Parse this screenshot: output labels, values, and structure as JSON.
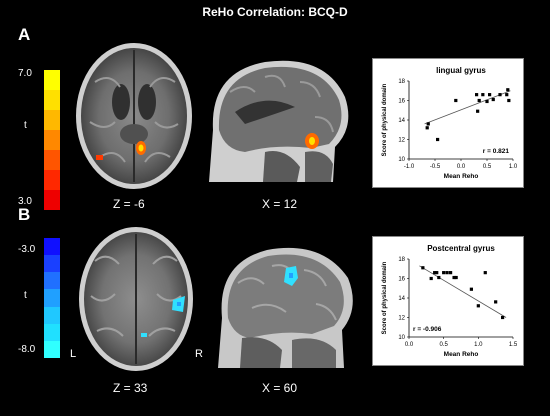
{
  "title": "ReHo Correlation: BCQ-D",
  "panels": {
    "a": {
      "letter": "A",
      "scale": {
        "max": "7.0",
        "min": "3.0",
        "stat": "t",
        "colors": [
          "#ffff00",
          "#ffe000",
          "#ffb800",
          "#ff8800",
          "#ff5500",
          "#ff2800",
          "#ee0000"
        ]
      },
      "axial_coord": "Z = -6",
      "sagittal_coord": "X = 12",
      "plot": {
        "title": "lingual gyrus",
        "r_label": "r = 0.821"
      }
    },
    "b": {
      "letter": "B",
      "scale": {
        "max": "-3.0",
        "min": "-8.0",
        "stat": "t",
        "colors": [
          "#1010ff",
          "#1a40ff",
          "#2070ff",
          "#20a0ff",
          "#20c8ff",
          "#20e0ff",
          "#30ffff"
        ]
      },
      "axial_coord": "Z = 33",
      "sagittal_coord": "X = 60",
      "left_marker": "L",
      "right_marker": "R",
      "plot": {
        "title": "Postcentral gyrus",
        "r_label": "r = -0.906"
      }
    }
  },
  "chart_data": [
    {
      "type": "scatter",
      "title": "lingual gyrus",
      "xlabel": "Mean Reho",
      "ylabel": "Score of physical domain",
      "xlim": [
        -1.0,
        1.0
      ],
      "ylim": [
        10,
        18
      ],
      "xticks": [
        "-1.0",
        "-0.5",
        "0.0",
        "0.5",
        "1.0"
      ],
      "yticks": [
        "10",
        "12",
        "14",
        "16",
        "18"
      ],
      "x": [
        -0.65,
        -0.63,
        -0.45,
        -0.1,
        0.3,
        0.32,
        0.35,
        0.42,
        0.5,
        0.55,
        0.62,
        0.75,
        0.88,
        0.9,
        0.92
      ],
      "y": [
        13.2,
        13.6,
        12.0,
        16.0,
        16.6,
        14.9,
        16.0,
        16.6,
        15.9,
        16.6,
        16.1,
        16.6,
        16.6,
        17.1,
        16.0
      ],
      "fit_line": {
        "x": [
          -0.7,
          0.95
        ],
        "y": [
          13.6,
          17.0
        ]
      },
      "annotation": "r = 0.821"
    },
    {
      "type": "scatter",
      "title": "Postcentral gyrus",
      "xlabel": "Mean Reho",
      "ylabel": "Score of physical domain",
      "xlim": [
        0.0,
        1.5
      ],
      "ylim": [
        10,
        18
      ],
      "xticks": [
        "0.0",
        "0.5",
        "1.0",
        "1.5"
      ],
      "yticks": [
        "10",
        "12",
        "14",
        "16",
        "18"
      ],
      "x": [
        0.2,
        0.32,
        0.37,
        0.4,
        0.43,
        0.5,
        0.55,
        0.6,
        0.65,
        0.68,
        0.9,
        1.0,
        1.1,
        1.25,
        1.35
      ],
      "y": [
        17.1,
        16.0,
        16.6,
        16.6,
        16.1,
        16.6,
        16.6,
        16.6,
        16.1,
        16.1,
        14.9,
        13.2,
        16.6,
        13.6,
        12.0
      ],
      "fit_line": {
        "x": [
          0.15,
          1.4
        ],
        "y": [
          17.3,
          12.0
        ]
      },
      "annotation": "r = -0.906"
    }
  ]
}
